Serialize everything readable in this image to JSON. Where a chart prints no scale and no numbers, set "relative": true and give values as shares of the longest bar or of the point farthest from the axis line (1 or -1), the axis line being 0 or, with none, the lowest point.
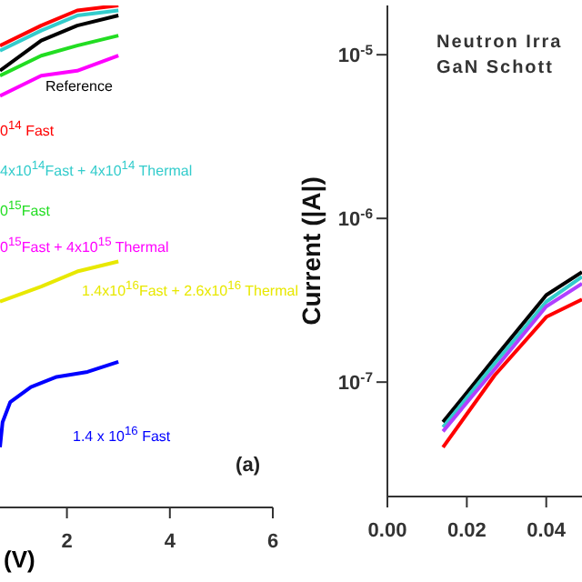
{
  "chart_data": [
    {
      "type": "line",
      "relative": true,
      "xlabel": "(V)",
      "xlim": [
        0.7,
        6
      ],
      "xticks": [
        2,
        4,
        6
      ],
      "annotations": [
        "(a)"
      ],
      "series": [
        {
          "name": "Reference",
          "color": "#000000",
          "x": [
            0.7,
            1.5,
            2.2,
            3
          ],
          "values": [
            0.87,
            0.93,
            0.96,
            0.98
          ]
        },
        {
          "name": "0$^{14}$ Fast",
          "color": "#ff0000",
          "x": [
            0.7,
            1.5,
            2.2,
            3
          ],
          "values": [
            0.92,
            0.96,
            0.99,
            1.0
          ]
        },
        {
          "name": "4x10$^{14}$Fast + 4x10$^{14}$ Thermal",
          "color": "#33cccc",
          "x": [
            0.7,
            1.5,
            2.2,
            3
          ],
          "values": [
            0.91,
            0.95,
            0.98,
            0.99
          ]
        },
        {
          "name": "0$^{15}$Fast",
          "color": "#22dd22",
          "x": [
            0.7,
            1.5,
            2.2,
            3
          ],
          "values": [
            0.86,
            0.9,
            0.92,
            0.94
          ]
        },
        {
          "name": "0$^{15}$Fast + 4x10$^{15}$ Thermal",
          "color": "#ff00ff",
          "x": [
            0.7,
            1.5,
            2.2,
            3
          ],
          "values": [
            0.82,
            0.86,
            0.87,
            0.9
          ]
        },
        {
          "name": "1.4x10$^{16}$Fast + 2.6x10$^{16}$ Thermal",
          "color": "#e8e800",
          "x": [
            0.7,
            1.5,
            2.2,
            3
          ],
          "values": [
            0.41,
            0.44,
            0.47,
            0.49
          ]
        },
        {
          "name": "1.4 x 10$^{16}$ Fast",
          "color": "#0000ff",
          "x": [
            0.7,
            0.75,
            0.9,
            1.3,
            1.8,
            2.4,
            3
          ],
          "values": [
            0.12,
            0.17,
            0.21,
            0.24,
            0.26,
            0.27,
            0.29
          ]
        }
      ]
    },
    {
      "type": "line",
      "title": "Neutron Irra",
      "subtitle": "GaN Schott",
      "ylabel": "Current (|A|)",
      "log": true,
      "xlim": [
        0,
        0.049
      ],
      "xticks": [
        {
          "value": 0,
          "label": "0.00"
        },
        {
          "value": 0.02,
          "label": "0.02"
        },
        {
          "value": 0.04,
          "label": "0.04"
        }
      ],
      "ylim": [
        2e-08,
        2e-05
      ],
      "yticks": [
        {
          "value": 1e-07,
          "label": "10$^{-7}$"
        },
        {
          "value": 1e-06,
          "label": "10$^{-6}$"
        },
        {
          "value": 1e-05,
          "label": "10$^{-5}$"
        }
      ],
      "series": [
        {
          "color": "#000000",
          "x": [
            0.014,
            0.027,
            0.04,
            0.049
          ],
          "values": [
            5.7e-08,
            1.4e-07,
            3.4e-07,
            4.7e-07
          ]
        },
        {
          "color": "#33cccc",
          "x": [
            0.014,
            0.027,
            0.04,
            0.049
          ],
          "values": [
            5.3e-08,
            1.3e-07,
            3.1e-07,
            4.4e-07
          ]
        },
        {
          "color": "#b040ff",
          "x": [
            0.014,
            0.027,
            0.04,
            0.049
          ],
          "values": [
            5e-08,
            1.2e-07,
            2.9e-07,
            4e-07
          ]
        },
        {
          "color": "#ff0000",
          "x": [
            0.014,
            0.027,
            0.04,
            0.049
          ],
          "values": [
            4e-08,
            1.1e-07,
            2.5e-07,
            3.2e-07
          ]
        }
      ]
    }
  ]
}
